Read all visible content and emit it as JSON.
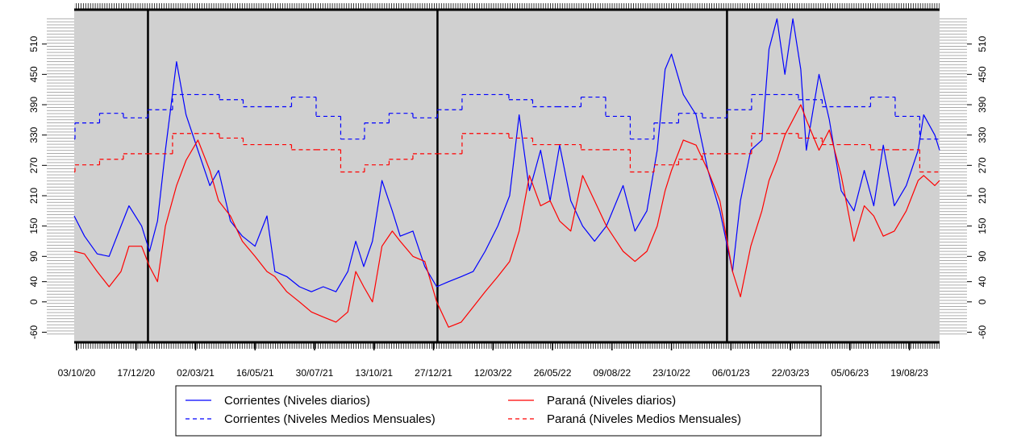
{
  "chart_data": {
    "type": "line",
    "xlim": [
      "2020-09-30",
      "2023-09-26"
    ],
    "ylim": [
      -80,
      578
    ],
    "yticks": [
      -60,
      0,
      40,
      90,
      150,
      210,
      270,
      330,
      390,
      450,
      510
    ],
    "xticks": [
      {
        "value": "2020-10-03",
        "label": "03/10/20"
      },
      {
        "value": "2020-12-17",
        "label": "17/12/20"
      },
      {
        "value": "2021-03-02",
        "label": "02/03/21"
      },
      {
        "value": "2021-05-16",
        "label": "16/05/21"
      },
      {
        "value": "2021-07-30",
        "label": "30/07/21"
      },
      {
        "value": "2021-10-13",
        "label": "13/10/21"
      },
      {
        "value": "2021-12-27",
        "label": "27/12/21"
      },
      {
        "value": "2022-03-12",
        "label": "12/03/22"
      },
      {
        "value": "2022-05-26",
        "label": "26/05/22"
      },
      {
        "value": "2022-08-09",
        "label": "09/08/22"
      },
      {
        "value": "2022-10-23",
        "label": "23/10/22"
      },
      {
        "value": "2023-01-06",
        "label": "06/01/23"
      },
      {
        "value": "2023-03-22",
        "label": "22/03/23"
      },
      {
        "value": "2023-06-05",
        "label": "05/06/23"
      },
      {
        "value": "2023-08-19",
        "label": "19/08/23"
      }
    ],
    "vlines": [
      "2021-01-01",
      "2022-01-01",
      "2023-01-01"
    ],
    "x": [
      "2020-09-30",
      "2020-10-13",
      "2020-10-29",
      "2020-11-13",
      "2020-11-28",
      "2020-12-08",
      "2020-12-24",
      "2021-01-03",
      "2021-01-13",
      "2021-01-23",
      "2021-02-06",
      "2021-02-18",
      "2021-03-05",
      "2021-03-20",
      "2021-03-31",
      "2021-04-15",
      "2021-04-30",
      "2021-05-16",
      "2021-05-31",
      "2021-06-10",
      "2021-06-25",
      "2021-07-11",
      "2021-07-26",
      "2021-08-10",
      "2021-08-26",
      "2021-09-10",
      "2021-09-20",
      "2021-09-30",
      "2021-10-11",
      "2021-10-23",
      "2021-11-05",
      "2021-11-15",
      "2021-12-01",
      "2021-12-16",
      "2021-12-31",
      "2022-01-15",
      "2022-01-31",
      "2022-02-15",
      "2022-03-02",
      "2022-03-18",
      "2022-04-02",
      "2022-04-14",
      "2022-04-27",
      "2022-05-11",
      "2022-05-23",
      "2022-06-04",
      "2022-06-18",
      "2022-07-03",
      "2022-07-18",
      "2022-08-02",
      "2022-08-23",
      "2022-09-07",
      "2022-09-22",
      "2022-10-05",
      "2022-10-15",
      "2022-10-23",
      "2022-11-07",
      "2022-11-23",
      "2022-12-08",
      "2022-12-23",
      "2023-01-08",
      "2023-01-18",
      "2023-01-31",
      "2023-02-14",
      "2023-02-23",
      "2023-03-05",
      "2023-03-15",
      "2023-03-25",
      "2023-04-04",
      "2023-04-11",
      "2023-04-27",
      "2023-05-10",
      "2023-05-25",
      "2023-06-10",
      "2023-06-23",
      "2023-07-05",
      "2023-07-17",
      "2023-07-31",
      "2023-08-15",
      "2023-08-30",
      "2023-09-06",
      "2023-09-20",
      "2023-09-26"
    ],
    "series": [
      {
        "name": "Corrientes (Niveles diarios)",
        "color": "#0000ff",
        "style": "solid",
        "values": [
          170,
          130,
          95,
          90,
          150,
          190,
          150,
          100,
          160,
          300,
          475,
          370,
          300,
          230,
          260,
          160,
          130,
          110,
          170,
          60,
          50,
          30,
          20,
          30,
          20,
          60,
          120,
          70,
          120,
          240,
          180,
          130,
          140,
          70,
          30,
          40,
          50,
          60,
          100,
          150,
          210,
          370,
          220,
          300,
          200,
          310,
          200,
          150,
          120,
          150,
          230,
          140,
          180,
          300,
          460,
          490,
          410,
          370,
          260,
          180,
          60,
          200,
          300,
          320,
          500,
          560,
          450,
          560,
          460,
          300,
          450,
          360,
          220,
          180,
          260,
          190,
          310,
          190,
          230,
          300,
          370,
          330,
          300
        ]
      },
      {
        "name": "Corrientes (Niveles Medios Mensuales)",
        "color": "#0000ff",
        "style": "dashed",
        "step": true,
        "x": [
          "2020-09-01",
          "2020-10-01",
          "2020-11-01",
          "2020-12-01",
          "2021-01-01",
          "2021-02-01",
          "2021-03-01",
          "2021-04-01",
          "2021-05-01",
          "2021-06-01",
          "2021-07-01",
          "2021-08-01",
          "2021-09-01",
          "2021-10-01",
          "2021-11-01",
          "2021-12-01",
          "2022-01-01",
          "2022-02-01",
          "2022-03-01",
          "2022-04-01",
          "2022-05-01",
          "2022-06-01",
          "2022-07-01",
          "2022-08-01",
          "2022-09-01",
          "2022-10-01",
          "2022-11-01",
          "2022-12-01",
          "2023-01-01",
          "2023-02-01",
          "2023-03-01",
          "2023-04-01",
          "2023-05-01",
          "2023-06-01",
          "2023-07-01",
          "2023-08-01",
          "2023-09-01"
        ],
        "values": [
          322,
          354,
          373,
          364,
          380,
          410,
          410,
          400,
          386,
          386,
          405,
          367,
          322,
          354,
          373,
          364,
          380,
          410,
          410,
          400,
          386,
          386,
          405,
          367,
          322,
          354,
          373,
          364,
          380,
          410,
          410,
          400,
          386,
          386,
          405,
          367,
          322
        ]
      },
      {
        "name": "Paraná (Niveles diarios)",
        "color": "#ff0000",
        "style": "solid",
        "values": [
          100,
          95,
          60,
          30,
          60,
          110,
          110,
          70,
          40,
          150,
          230,
          280,
          320,
          260,
          200,
          170,
          120,
          90,
          60,
          50,
          20,
          0,
          -20,
          -30,
          -40,
          -20,
          60,
          30,
          0,
          110,
          140,
          120,
          90,
          80,
          0,
          -50,
          -40,
          -10,
          20,
          50,
          80,
          140,
          250,
          190,
          200,
          160,
          140,
          250,
          200,
          150,
          100,
          80,
          100,
          150,
          220,
          260,
          320,
          310,
          260,
          200,
          60,
          10,
          110,
          180,
          240,
          280,
          330,
          360,
          390,
          360,
          300,
          340,
          250,
          120,
          190,
          170,
          130,
          140,
          180,
          240,
          250,
          230,
          240
        ]
      },
      {
        "name": "Paraná (Niveles Medios Mensuales)",
        "color": "#ff0000",
        "style": "dashed",
        "step": true,
        "x": [
          "2020-09-01",
          "2020-10-01",
          "2020-11-01",
          "2020-12-01",
          "2021-01-01",
          "2021-02-01",
          "2021-03-01",
          "2021-04-01",
          "2021-05-01",
          "2021-06-01",
          "2021-07-01",
          "2021-08-01",
          "2021-09-01",
          "2021-10-01",
          "2021-11-01",
          "2021-12-01",
          "2022-01-01",
          "2022-02-01",
          "2022-03-01",
          "2022-04-01",
          "2022-05-01",
          "2022-06-01",
          "2022-07-01",
          "2022-08-01",
          "2022-09-01",
          "2022-10-01",
          "2022-11-01",
          "2022-12-01",
          "2023-01-01",
          "2023-02-01",
          "2023-03-01",
          "2023-04-01",
          "2023-05-01",
          "2023-06-01",
          "2023-07-01",
          "2023-08-01",
          "2023-09-01"
        ],
        "values": [
          257,
          271,
          282,
          293,
          293,
          333,
          333,
          324,
          311,
          311,
          301,
          301,
          257,
          271,
          282,
          293,
          293,
          333,
          333,
          324,
          311,
          311,
          301,
          301,
          257,
          271,
          282,
          293,
          293,
          333,
          333,
          324,
          311,
          311,
          301,
          301,
          257
        ]
      }
    ]
  }
}
